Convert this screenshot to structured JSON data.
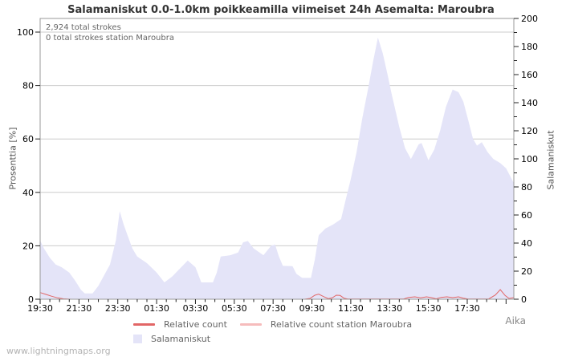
{
  "page": {
    "watermark": "www.lightningmaps.org"
  },
  "annotations": {
    "total": "2,924 total strokes",
    "station": "0 total strokes station Maroubra"
  },
  "legend": {
    "relative": "Relative count",
    "station": "Relative count station Maroubra",
    "area": "Salamaniskut"
  },
  "colors": {
    "area": "#e4e4f8",
    "relative": "#e26666",
    "station": "#f6bcbc",
    "grid": "#cccccc",
    "axis": "#999999",
    "tick": "#222222",
    "tick_text": "#000000"
  },
  "chart_data": {
    "type": "area",
    "title": "Salamaniskut 0.0-1.0km poikkeamilla viimeiset 24h Asemalta: Maroubra",
    "xlabel": "Aika",
    "ylabel_left": "Prosenttia  [%]",
    "ylabel_right": "Salamaniskut",
    "x_unit": "hours since 19:30",
    "x_range": [
      0,
      24.4
    ],
    "ylim_left_percent": [
      0,
      105
    ],
    "ylim_right_count": [
      0,
      200
    ],
    "grid": "horizontal",
    "legend_position": "bottom",
    "x_tick_labels": [
      "19:30",
      "21:30",
      "23:30",
      "01:30",
      "03:30",
      "05:30",
      "07:30",
      "09:30",
      "11:30",
      "13:30",
      "15:30",
      "17:30"
    ],
    "x_tick_hours": [
      0,
      2,
      4,
      6,
      8,
      10,
      12,
      14,
      16,
      18,
      20,
      22
    ],
    "left_ticks_percent": [
      0,
      20,
      40,
      60,
      80,
      100
    ],
    "right_ticks_count": [
      0,
      20,
      40,
      60,
      80,
      100,
      120,
      140,
      160,
      180,
      200
    ],
    "series": [
      {
        "name": "Salamaniskut",
        "kind": "area",
        "color": "#e4e4f8",
        "y_axis": "left_percent",
        "points": [
          [
            0,
            22
          ],
          [
            0.2,
            19
          ],
          [
            0.5,
            15.5
          ],
          [
            0.8,
            13
          ],
          [
            1.1,
            12
          ],
          [
            1.5,
            10
          ],
          [
            1.8,
            7
          ],
          [
            2.1,
            3.5
          ],
          [
            2.3,
            2.2
          ],
          [
            2.7,
            2.2
          ],
          [
            3.0,
            5
          ],
          [
            3.3,
            9
          ],
          [
            3.6,
            13
          ],
          [
            3.9,
            22
          ],
          [
            4.1,
            33
          ],
          [
            4.3,
            28
          ],
          [
            4.5,
            24
          ],
          [
            4.75,
            19
          ],
          [
            5.0,
            16
          ],
          [
            5.5,
            13.5
          ],
          [
            6.0,
            10
          ],
          [
            6.4,
            6.3
          ],
          [
            6.8,
            8.5
          ],
          [
            7.2,
            11.5
          ],
          [
            7.6,
            14.5
          ],
          [
            8.0,
            12
          ],
          [
            8.3,
            6.3
          ],
          [
            8.9,
            6.3
          ],
          [
            9.1,
            10
          ],
          [
            9.3,
            16
          ],
          [
            9.8,
            16.5
          ],
          [
            10.2,
            17.5
          ],
          [
            10.45,
            21.3
          ],
          [
            10.7,
            21.8
          ],
          [
            11.0,
            19
          ],
          [
            11.5,
            16.5
          ],
          [
            11.9,
            20
          ],
          [
            12.1,
            20.5
          ],
          [
            12.3,
            16
          ],
          [
            12.5,
            12.5
          ],
          [
            13.0,
            12.4
          ],
          [
            13.2,
            9.5
          ],
          [
            13.5,
            8
          ],
          [
            13.95,
            8
          ],
          [
            14.15,
            15
          ],
          [
            14.35,
            24
          ],
          [
            14.7,
            26.5
          ],
          [
            15.1,
            28
          ],
          [
            15.5,
            30
          ],
          [
            15.8,
            39
          ],
          [
            16.0,
            45
          ],
          [
            16.3,
            55
          ],
          [
            16.6,
            68
          ],
          [
            16.9,
            79
          ],
          [
            17.15,
            89
          ],
          [
            17.4,
            98
          ],
          [
            17.65,
            92
          ],
          [
            17.9,
            84
          ],
          [
            18.1,
            77
          ],
          [
            18.5,
            64.5
          ],
          [
            18.8,
            56.5
          ],
          [
            19.1,
            52.5
          ],
          [
            19.5,
            58
          ],
          [
            19.65,
            58.5
          ],
          [
            20.0,
            52
          ],
          [
            20.3,
            56
          ],
          [
            20.6,
            63
          ],
          [
            20.9,
            72
          ],
          [
            21.25,
            78.5
          ],
          [
            21.55,
            77.5
          ],
          [
            21.8,
            74
          ],
          [
            22.05,
            67
          ],
          [
            22.3,
            60
          ],
          [
            22.5,
            57.5
          ],
          [
            22.75,
            58.8
          ],
          [
            23.05,
            55
          ],
          [
            23.35,
            52.5
          ],
          [
            23.7,
            51
          ],
          [
            24.0,
            49
          ],
          [
            24.4,
            43.5
          ]
        ]
      },
      {
        "name": "Relative count",
        "kind": "line",
        "color": "#e26666",
        "y_axis": "left_percent",
        "points": [
          [
            0,
            2.5
          ],
          [
            0.3,
            1.8
          ],
          [
            0.6,
            1.1
          ],
          [
            0.9,
            0.5
          ],
          [
            1.2,
            0.15
          ],
          [
            1.6,
            0
          ],
          [
            13.6,
            0
          ],
          [
            13.9,
            0.3
          ],
          [
            14.15,
            1.5
          ],
          [
            14.35,
            1.9
          ],
          [
            14.6,
            1.0
          ],
          [
            14.85,
            0.2
          ],
          [
            15.05,
            0.5
          ],
          [
            15.25,
            1.5
          ],
          [
            15.45,
            1.4
          ],
          [
            15.65,
            0.4
          ],
          [
            15.85,
            0.05
          ],
          [
            18.7,
            0.05
          ],
          [
            19.0,
            0.7
          ],
          [
            19.3,
            0.9
          ],
          [
            19.6,
            0.5
          ],
          [
            19.9,
            0.9
          ],
          [
            20.15,
            0.6
          ],
          [
            20.4,
            0.15
          ],
          [
            20.65,
            0.7
          ],
          [
            20.95,
            0.9
          ],
          [
            21.25,
            0.6
          ],
          [
            21.55,
            0.9
          ],
          [
            21.8,
            0.4
          ],
          [
            22.05,
            0.1
          ],
          [
            23.1,
            0.1
          ],
          [
            23.45,
            1.6
          ],
          [
            23.7,
            3.6
          ],
          [
            23.95,
            1.4
          ],
          [
            24.15,
            0.3
          ],
          [
            24.4,
            0.6
          ]
        ]
      },
      {
        "name": "Relative count station Maroubra",
        "kind": "line",
        "color": "#f6bcbc",
        "y_axis": "left_percent",
        "points": [
          [
            0,
            0
          ],
          [
            24.4,
            0
          ]
        ]
      }
    ]
  }
}
